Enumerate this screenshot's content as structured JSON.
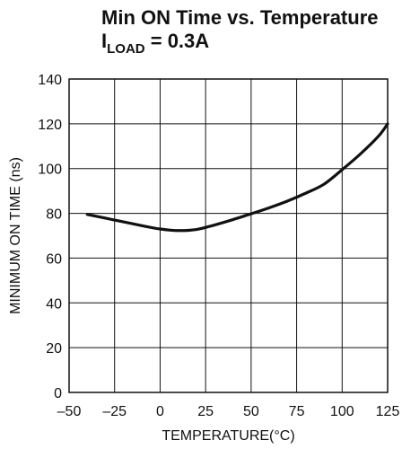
{
  "chart_data": {
    "type": "line",
    "title_line1": "Min ON Time vs. Temperature",
    "title_line2_prefix": "I",
    "title_line2_subscript": "LOAD",
    "title_line2_suffix": " = 0.3A",
    "xlabel": "TEMPERATURE(°C)",
    "ylabel": "MINIMUM ON TIME (ns)",
    "xlim": [
      -50,
      125
    ],
    "ylim": [
      0,
      140
    ],
    "x_ticks": [
      -50,
      -25,
      0,
      25,
      50,
      75,
      100,
      125
    ],
    "x_tick_labels": [
      "–50",
      "–25",
      "0",
      "25",
      "50",
      "75",
      "100",
      "125"
    ],
    "y_ticks": [
      0,
      20,
      40,
      60,
      80,
      100,
      120,
      140
    ],
    "y_tick_labels": [
      "0",
      "20",
      "40",
      "60",
      "80",
      "100",
      "120",
      "140"
    ],
    "grid": true,
    "series": [
      {
        "color": "#111111",
        "x": [
          -40,
          -25,
          -10,
          0,
          10,
          20,
          30,
          40,
          50,
          60,
          70,
          80,
          90,
          100,
          110,
          120,
          125
        ],
        "y": [
          79.5,
          77,
          74.5,
          73,
          72.3,
          72.8,
          74.8,
          77.2,
          79.8,
          82.5,
          85.5,
          89,
          93,
          99.5,
          106.5,
          114.5,
          120
        ]
      }
    ]
  }
}
